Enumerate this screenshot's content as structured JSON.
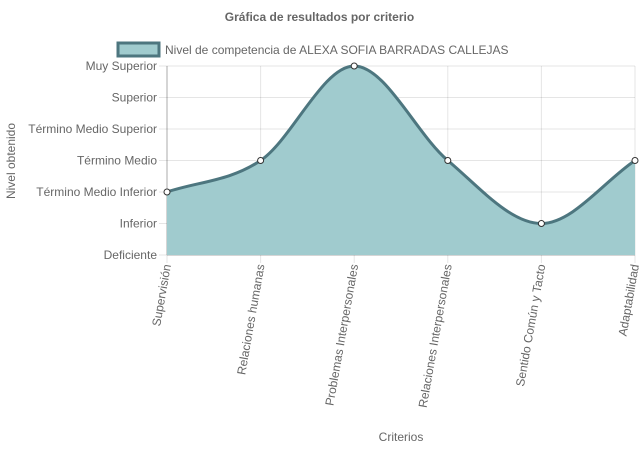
{
  "chart_data": {
    "type": "area",
    "title": "Gráfica de resultados por criterio",
    "xlabel": "Criterios",
    "ylabel": "Nivel obtenido",
    "categories": [
      "Supervisión",
      "Relaciones humanas",
      "Problemas Interpersonales",
      "Relaciones Interpersonales",
      "Sentido Común y Tacto",
      "Adaptabilidad"
    ],
    "y_levels": [
      "Deficiente",
      "Inferior",
      "Término Medio Inferior",
      "Término Medio",
      "Término Medio Superior",
      "Superior",
      "Muy Superior"
    ],
    "ylim": [
      0,
      6
    ],
    "series": [
      {
        "name": "Nivel de competencia de ALEXA SOFIA BARRADAS CALLEJAS",
        "values": [
          2,
          3,
          6,
          3,
          1,
          3
        ],
        "fill_color": "#a0cbce",
        "line_color": "#4d767f"
      }
    ],
    "grid": true,
    "legend": "top"
  }
}
